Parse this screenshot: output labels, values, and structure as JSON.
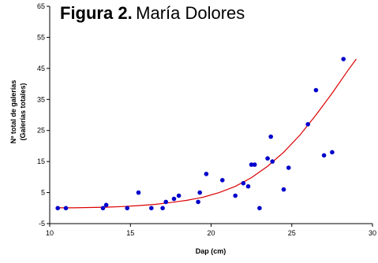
{
  "chart_data": {
    "type": "scatter",
    "title_bold": "Figura 2.",
    "title_rest": "María Dolores",
    "xlabel": "Dap (cm)",
    "ylabel_line1": "Nº total de galerías",
    "ylabel_line2": "(Galerías totales)",
    "xlim": [
      10,
      30
    ],
    "ylim": [
      -5,
      65
    ],
    "x_ticks": [
      10,
      15,
      20,
      25,
      30
    ],
    "y_ticks": [
      -5,
      5,
      15,
      25,
      35,
      45,
      55,
      65
    ],
    "x_tick_labels": [
      "10",
      "15",
      "20",
      "25",
      "30"
    ],
    "y_tick_labels": [
      "-5",
      "5",
      "15",
      "25",
      "35",
      "45",
      "55",
      "65"
    ],
    "grid": false,
    "point_color": "#0000cc",
    "trend_color": "#dd0000",
    "points": [
      {
        "x": 10.5,
        "y": 0
      },
      {
        "x": 11.0,
        "y": 0
      },
      {
        "x": 13.3,
        "y": 0
      },
      {
        "x": 13.5,
        "y": 1
      },
      {
        "x": 14.8,
        "y": 0
      },
      {
        "x": 15.5,
        "y": 5
      },
      {
        "x": 16.3,
        "y": 0
      },
      {
        "x": 17.0,
        "y": 0
      },
      {
        "x": 17.2,
        "y": 2
      },
      {
        "x": 17.7,
        "y": 3
      },
      {
        "x": 18.0,
        "y": 4
      },
      {
        "x": 19.2,
        "y": 2
      },
      {
        "x": 19.3,
        "y": 5
      },
      {
        "x": 19.7,
        "y": 11
      },
      {
        "x": 20.7,
        "y": 9
      },
      {
        "x": 21.5,
        "y": 4
      },
      {
        "x": 22.0,
        "y": 8
      },
      {
        "x": 22.3,
        "y": 7
      },
      {
        "x": 22.5,
        "y": 14
      },
      {
        "x": 22.7,
        "y": 14
      },
      {
        "x": 23.0,
        "y": 0
      },
      {
        "x": 23.5,
        "y": 16
      },
      {
        "x": 23.7,
        "y": 23
      },
      {
        "x": 23.8,
        "y": 15
      },
      {
        "x": 24.5,
        "y": 6
      },
      {
        "x": 24.8,
        "y": 13
      },
      {
        "x": 26.0,
        "y": 27
      },
      {
        "x": 26.5,
        "y": 38
      },
      {
        "x": 27.0,
        "y": 17
      },
      {
        "x": 27.5,
        "y": 18
      },
      {
        "x": 28.2,
        "y": 48
      }
    ],
    "trendline": {
      "type": "exponential",
      "x": [
        10.5,
        11.5,
        12.5,
        13.5,
        14.5,
        15.5,
        16.5,
        17.5,
        18.5,
        19.5,
        20.5,
        21.5,
        22.5,
        23.5,
        24.5,
        25.5,
        26.5,
        27.5,
        28.5,
        29.0
      ],
      "y": [
        0.1,
        0.1,
        0.2,
        0.3,
        0.5,
        0.8,
        1.2,
        1.8,
        2.5,
        3.5,
        5.0,
        7.0,
        9.8,
        13.5,
        18.0,
        23.5,
        30.0,
        37.0,
        44.5,
        48.0
      ]
    }
  }
}
